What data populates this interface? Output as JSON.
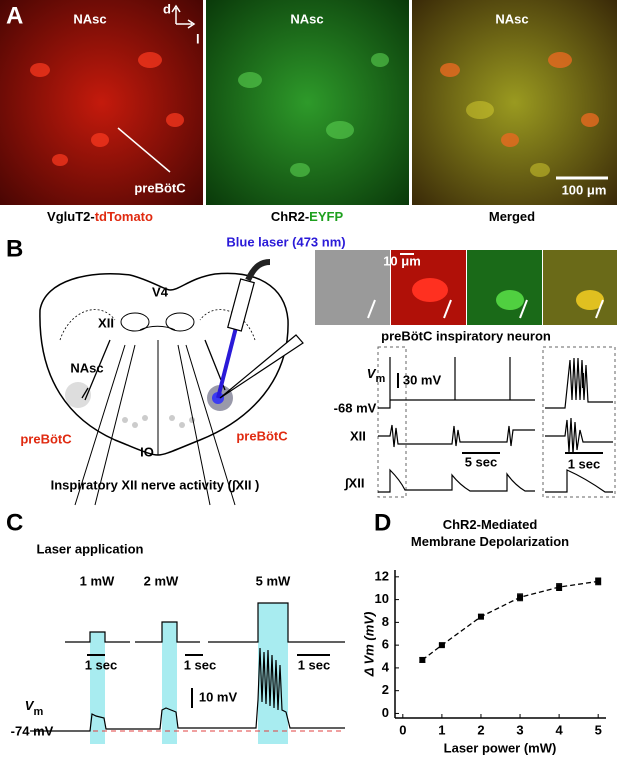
{
  "panel_a": {
    "letter": "A",
    "image_labels": [
      "NAsc",
      "NAsc",
      "NAsc"
    ],
    "compass": [
      "d",
      "l"
    ],
    "pointer_label": "preBötC",
    "scale_bar": "100 μm",
    "captions": [
      [
        "VgluT2-",
        "tdTomato"
      ],
      [
        "ChR2-",
        "EYFP"
      ],
      [
        "Merged"
      ]
    ]
  },
  "panel_b": {
    "letter": "B",
    "laser": "Blue laser (473 nm)",
    "diagram_labels": [
      "V4",
      "XII",
      "NAsc",
      "IO"
    ],
    "prebotc_labels": [
      "preBötC",
      "preBötC"
    ],
    "nerve_label": "Inspiratory XII nerve activity (∫XII )",
    "micro_scale": "10 μm",
    "neuron_title": "preBötC inspiratory neuron",
    "vm_label": [
      "V",
      "m"
    ],
    "vm_rest": "-68 mV",
    "vm_scale": "30 mV",
    "xii_label": "XII",
    "int_xii_label": "∫XII",
    "time_scales": [
      "5 sec",
      "1 sec"
    ]
  },
  "panel_c": {
    "letter": "C",
    "title": "Laser application",
    "powers": [
      "1 mW",
      "2 mW",
      "5 mW"
    ],
    "time_scales": [
      "1 sec",
      "1 sec",
      "1 sec"
    ],
    "vm_scale": "10 mV",
    "vm_label": [
      "V",
      "m"
    ],
    "vm_rest": "-74 mV"
  },
  "chart_data": {
    "type": "line",
    "letter": "D",
    "title": "ChR2-Mediated Membrane Depolarization",
    "x_label": "Laser power (mW)",
    "y_label": "Δ Vm (mV)",
    "x": [
      0.5,
      1,
      2,
      3,
      4,
      5
    ],
    "values": [
      4.7,
      6.0,
      8.5,
      10.2,
      11.1,
      11.6
    ],
    "errors": [
      0.2,
      0.1,
      0.2,
      0.3,
      0.3,
      0.3
    ],
    "color": "#000000",
    "xlim": [
      -0.2,
      5.2
    ],
    "ylim": [
      -0.4,
      12.6
    ],
    "xticks": [
      0,
      1,
      2,
      3,
      4,
      5
    ],
    "yticks": [
      0,
      2,
      4,
      6,
      8,
      10,
      12
    ]
  }
}
